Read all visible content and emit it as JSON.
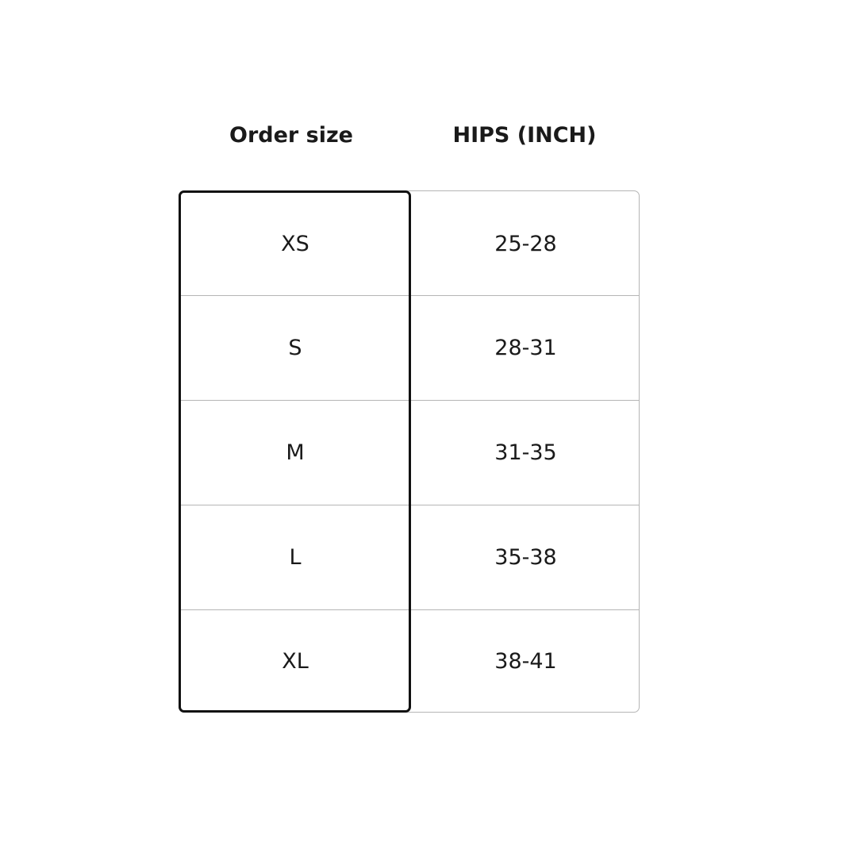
{
  "headers": {
    "size": "Order size",
    "hips": "HIPS (INCH)"
  },
  "rows": [
    {
      "size": "XS",
      "hips": "25-28"
    },
    {
      "size": "S",
      "hips": "28-31"
    },
    {
      "size": "M",
      "hips": "31-35"
    },
    {
      "size": "L",
      "hips": "35-38"
    },
    {
      "size": "XL",
      "hips": "38-41"
    }
  ],
  "colors": {
    "highlight_border": "#111111",
    "grid": "#b5b5b5"
  }
}
